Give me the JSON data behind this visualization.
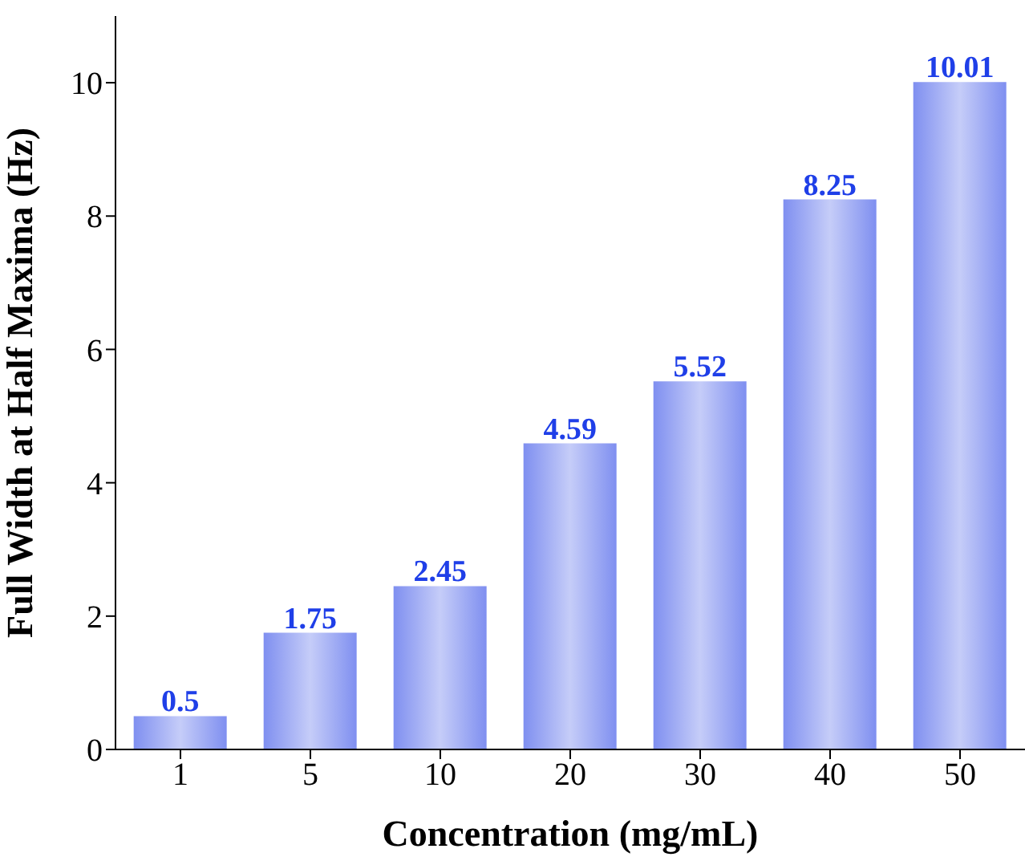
{
  "chart_data": {
    "type": "bar",
    "xlabel": "Concentration (mg/mL)",
    "ylabel": "Full Width at Half Maxima (Hz)",
    "categories": [
      "1",
      "5",
      "10",
      "20",
      "30",
      "40",
      "50"
    ],
    "values": [
      0.5,
      1.75,
      2.45,
      4.59,
      5.52,
      8.25,
      10.01
    ],
    "color": "#7f8ff0",
    "ylim": [
      0,
      11
    ],
    "yticks": [
      0,
      2,
      4,
      6,
      8,
      10
    ],
    "grid": false,
    "data_labels": true
  }
}
